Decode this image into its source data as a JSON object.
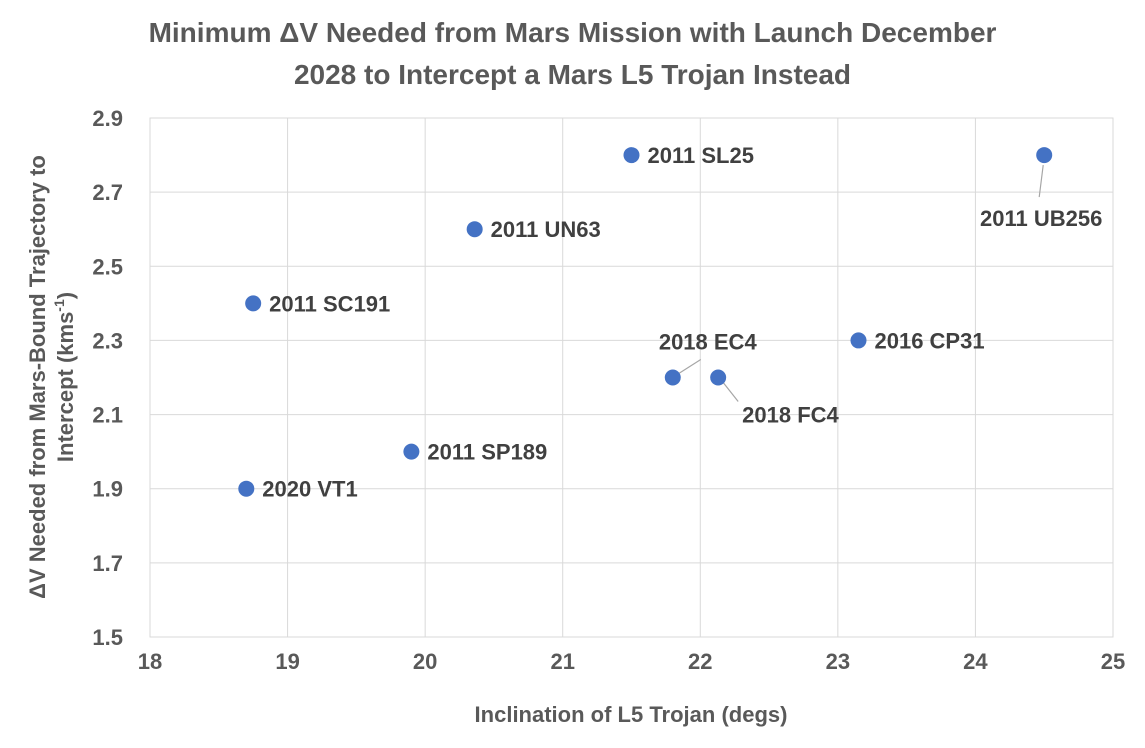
{
  "chart_data": {
    "type": "scatter",
    "title_line1": "Minimum ΔV Needed from Mars Mission with Launch December",
    "title_line2": "2028 to Intercept a Mars L5 Trojan Instead",
    "xlabel": "Inclination of L5 Trojan (degs)",
    "ylabel_line1": "ΔV Needed from Mars-Bound Trajectory to",
    "ylabel_line2": "Intercept (kms",
    "ylabel_sup": "-1",
    "ylabel_end": ")",
    "xlim": [
      18,
      25
    ],
    "ylim": [
      1.5,
      2.9
    ],
    "xticks": [
      "18",
      "19",
      "20",
      "21",
      "22",
      "23",
      "24",
      "25"
    ],
    "yticks": [
      "1.5",
      "1.7",
      "1.9",
      "2.1",
      "2.3",
      "2.5",
      "2.7",
      "2.9"
    ],
    "grid": true,
    "marker_color": "#4472C4",
    "points": [
      {
        "label": "2020 VT1",
        "x": 18.7,
        "y": 1.9
      },
      {
        "label": "2011 SC191",
        "x": 18.75,
        "y": 2.4
      },
      {
        "label": "2011 SP189",
        "x": 19.9,
        "y": 2.0
      },
      {
        "label": "2011 UN63",
        "x": 20.36,
        "y": 2.6
      },
      {
        "label": "2011 SL25",
        "x": 21.5,
        "y": 2.8
      },
      {
        "label": "2018 EC4",
        "x": 21.8,
        "y": 2.2
      },
      {
        "label": "2018 FC4",
        "x": 22.13,
        "y": 2.2
      },
      {
        "label": "2016 CP31",
        "x": 23.15,
        "y": 2.3
      },
      {
        "label": "2011 UB256",
        "x": 24.5,
        "y": 2.8
      }
    ]
  }
}
